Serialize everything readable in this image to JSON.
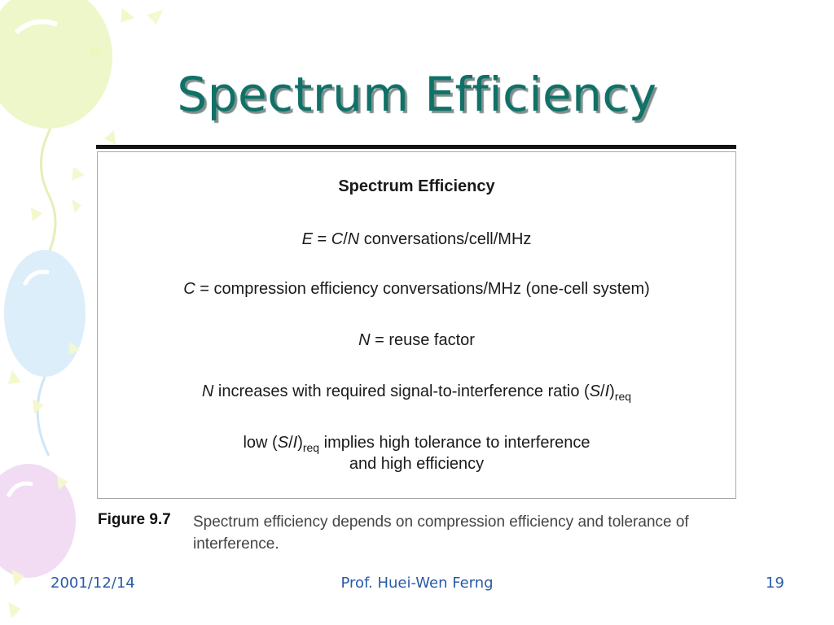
{
  "slide": {
    "title": "Spectrum Efficiency"
  },
  "figure": {
    "heading": "Spectrum Efficiency",
    "eq_E": {
      "var": "E",
      "eq": " = ",
      "c": "C",
      "slash": "/",
      "n": "N",
      "rest": " conversations/cell/MHz"
    },
    "eq_C": {
      "var": "C",
      "eq": " = ",
      "rest": "compression efficiency conversations/MHz (one-cell system)"
    },
    "eq_N": {
      "var": "N",
      "eq": " = ",
      "rest": "reuse factor"
    },
    "line4": {
      "var": "N",
      "text": " increases with required signal-to-interference ratio (",
      "s": "S",
      "slash": "/",
      "i": "I",
      "close": ")",
      "sub": "req"
    },
    "line5": {
      "pre": "low (",
      "s": "S",
      "slash": "/",
      "i": "I",
      "close": ")",
      "sub": "req",
      "post": " implies high tolerance to interference"
    },
    "line6": "and high efficiency"
  },
  "caption": {
    "label": "Figure 9.7",
    "text": "Spectrum efficiency depends on compression efficiency and tolerance of interference."
  },
  "footer": {
    "date": "2001/12/14",
    "author": "Prof. Huei-Wen Ferng",
    "page": "19"
  },
  "colors": {
    "title": "#0f7167",
    "footer": "#2a5aa8",
    "balloon_green": "#eef7c9",
    "balloon_blue": "#dbeefa",
    "balloon_purple": "#f1dcf3"
  }
}
